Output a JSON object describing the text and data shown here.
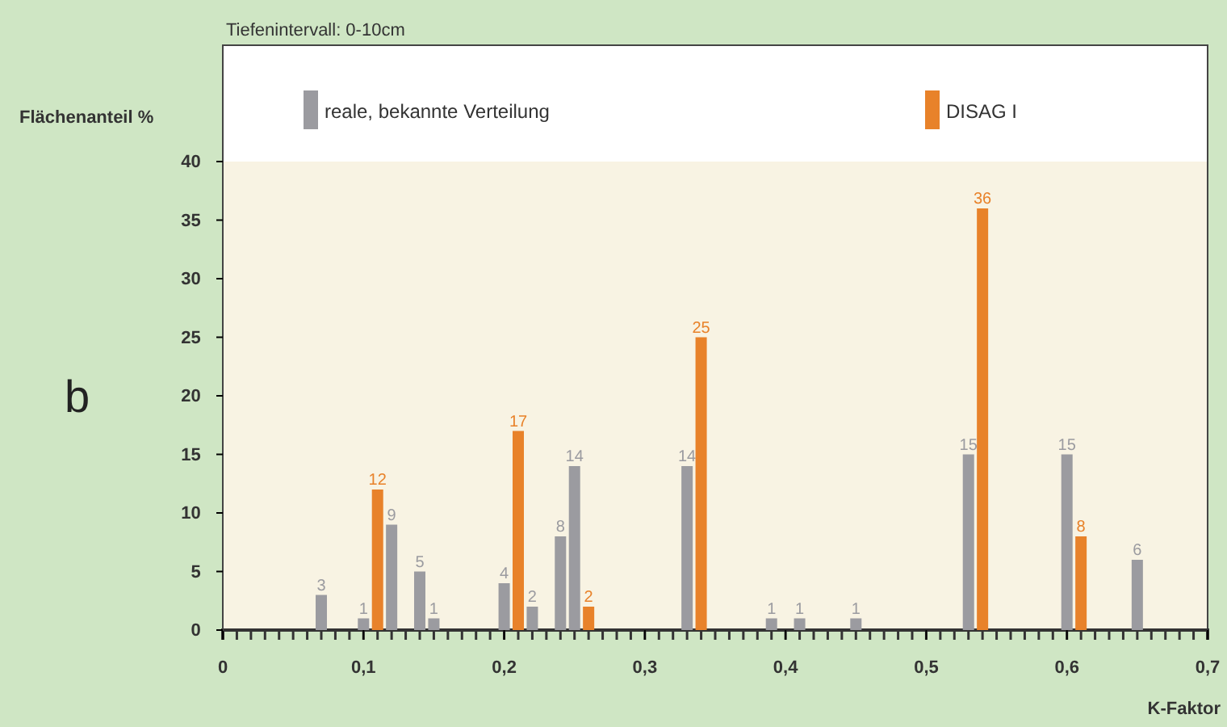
{
  "chart_data": {
    "type": "bar",
    "title": "Tiefenintervall: 0-10cm",
    "ylabel": "Flächenanteil %",
    "xlabel": "K-Faktor",
    "annotations": [
      "b"
    ],
    "xlim": [
      0,
      0.7
    ],
    "ylim": [
      0,
      40
    ],
    "xticks": [
      {
        "value": 0,
        "label": "0"
      },
      {
        "value": 0.1,
        "label": "0,1"
      },
      {
        "value": 0.2,
        "label": "0,2"
      },
      {
        "value": 0.3,
        "label": "0,3"
      },
      {
        "value": 0.4,
        "label": "0,4"
      },
      {
        "value": 0.5,
        "label": "0,5"
      },
      {
        "value": 0.6,
        "label": "0,6"
      },
      {
        "value": 0.7,
        "label": "0,7"
      }
    ],
    "yticks": [
      0,
      5,
      10,
      15,
      20,
      25,
      30,
      35,
      40
    ],
    "data_labels": true,
    "legend": "top",
    "series": [
      {
        "name": "reale, bekannte Verteilung",
        "color": "#9b9ba0",
        "x": [
          0.07,
          0.1,
          0.12,
          0.14,
          0.15,
          0.2,
          0.22,
          0.24,
          0.25,
          0.33,
          0.39,
          0.41,
          0.45,
          0.53,
          0.6,
          0.65
        ],
        "values": [
          3,
          1,
          9,
          5,
          1,
          4,
          2,
          8,
          14,
          14,
          1,
          1,
          1,
          15,
          15,
          6
        ]
      },
      {
        "name": "DISAG I",
        "color": "#e8822a",
        "x": [
          0.11,
          0.21,
          0.26,
          0.34,
          0.54,
          0.61
        ],
        "values": [
          12,
          17,
          2,
          25,
          36,
          8
        ]
      }
    ]
  }
}
